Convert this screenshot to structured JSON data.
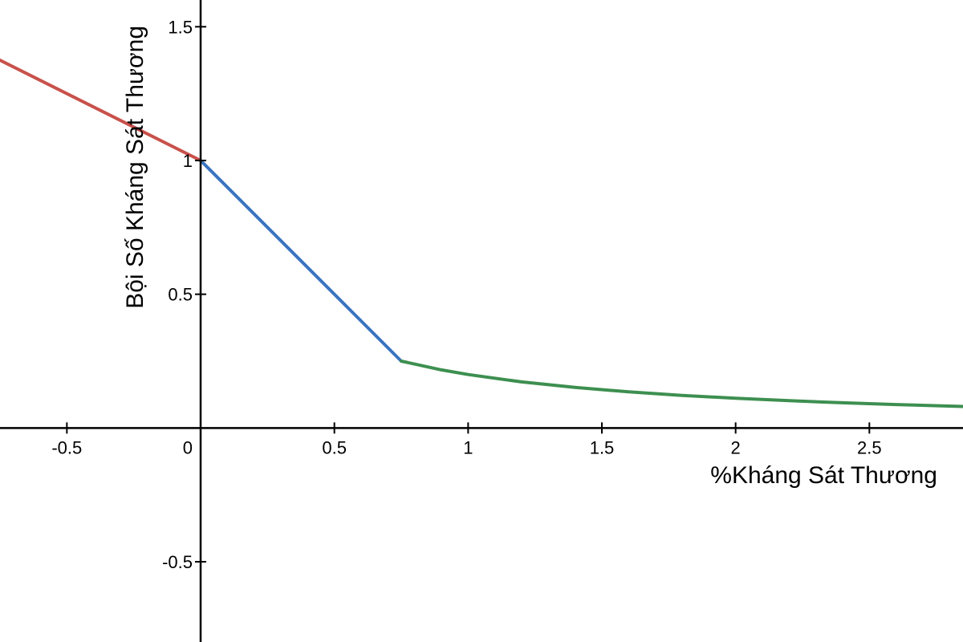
{
  "chart_data": {
    "type": "line",
    "xlabel": "%Kháng Sát Thương",
    "ylabel": "Bội Số Kháng Sát Thương",
    "xlim": [
      -0.75,
      2.85
    ],
    "ylim": [
      -0.8,
      1.6
    ],
    "x_ticks": [
      {
        "value": -0.5,
        "label": "-0.5"
      },
      {
        "value": 0,
        "label": "0"
      },
      {
        "value": 0.5,
        "label": "0.5"
      },
      {
        "value": 1,
        "label": "1"
      },
      {
        "value": 1.5,
        "label": "1.5"
      },
      {
        "value": 2,
        "label": "2"
      },
      {
        "value": 2.5,
        "label": "2.5"
      }
    ],
    "y_ticks": [
      {
        "value": 1.5,
        "label": "1.5"
      },
      {
        "value": 1,
        "label": "1"
      },
      {
        "value": 0.5,
        "label": "0.5"
      },
      {
        "value": -0.5,
        "label": "-0.5"
      }
    ],
    "grid": false,
    "series": [
      {
        "color": "#c9504b",
        "x": [
          -0.75,
          0
        ],
        "y": [
          1.375,
          1.0
        ]
      },
      {
        "color": "#3a74c0",
        "x": [
          0,
          0.75
        ],
        "y": [
          1.0,
          0.25
        ]
      },
      {
        "color": "#3d8f50",
        "x": [
          0.75,
          0.9,
          1.0,
          1.2,
          1.4,
          1.6,
          1.8,
          2.0,
          2.2,
          2.4,
          2.6,
          2.85
        ],
        "y": [
          0.25,
          0.2174,
          0.2,
          0.1724,
          0.1515,
          0.1351,
          0.122,
          0.1111,
          0.102,
          0.0943,
          0.0877,
          0.0806
        ]
      }
    ]
  }
}
